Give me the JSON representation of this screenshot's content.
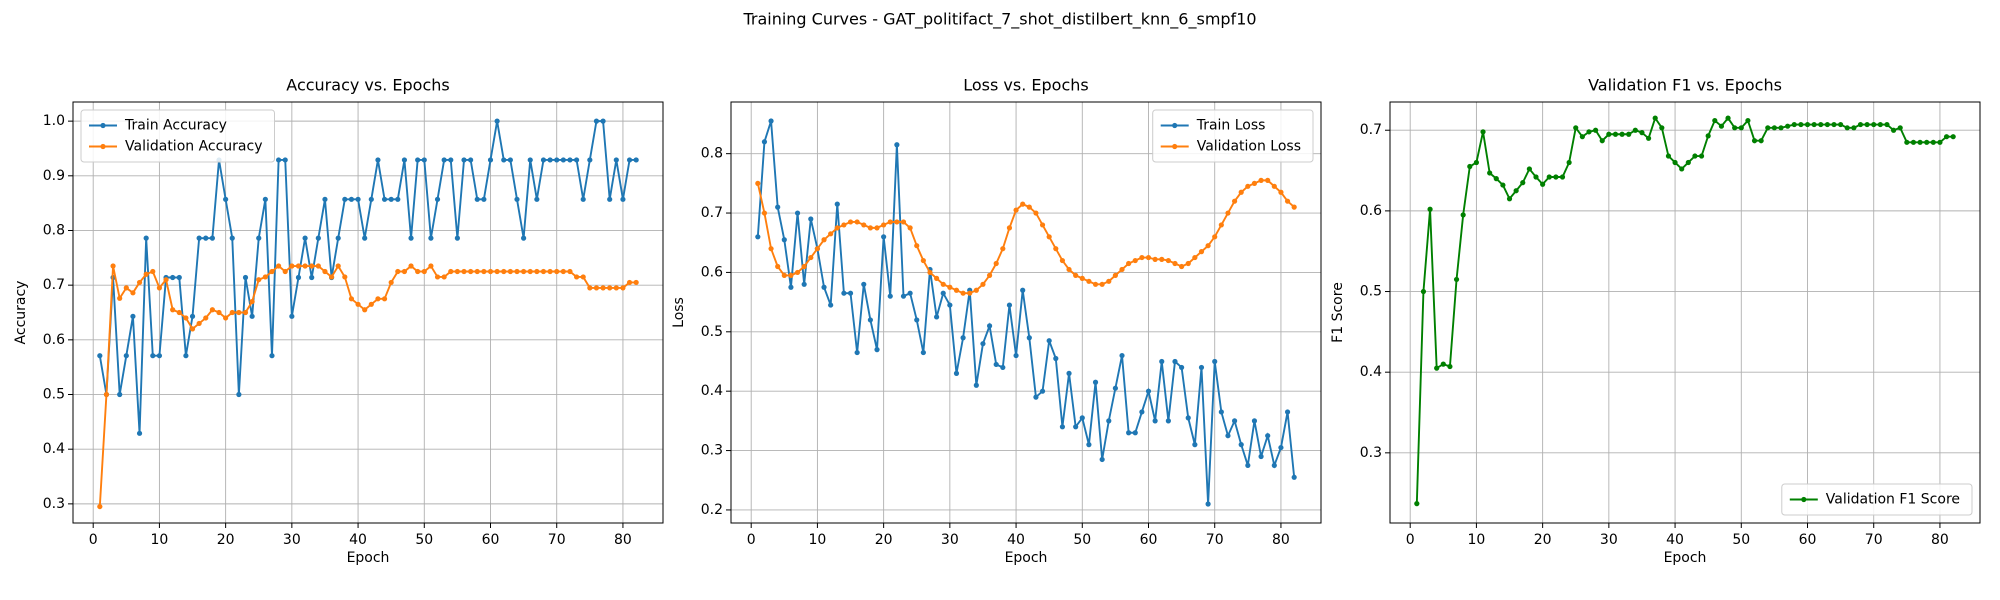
{
  "title": "Training Curves - GAT_politifact_7_shot_distilbert_knn_6_smpf10",
  "chart_data": [
    {
      "type": "line",
      "title": "Accuracy vs. Epochs",
      "xlabel": "Epoch",
      "ylabel": "Accuracy",
      "grid": true,
      "legend": "upper left",
      "x": [
        1,
        2,
        3,
        4,
        5,
        6,
        7,
        8,
        9,
        10,
        11,
        12,
        13,
        14,
        15,
        16,
        17,
        18,
        19,
        20,
        21,
        22,
        23,
        24,
        25,
        26,
        27,
        28,
        29,
        30,
        31,
        32,
        33,
        34,
        35,
        36,
        37,
        38,
        39,
        40,
        41,
        42,
        43,
        44,
        45,
        46,
        47,
        48,
        49,
        50,
        51,
        52,
        53,
        54,
        55,
        56,
        57,
        58,
        59,
        60,
        61,
        62,
        63,
        64,
        65,
        66,
        67,
        68,
        69,
        70,
        71,
        72,
        73,
        74,
        75,
        76,
        77,
        78,
        79,
        80,
        81,
        82
      ],
      "xlim": [
        -3.05,
        86.05
      ],
      "xticks": [
        0,
        10,
        20,
        30,
        40,
        50,
        60,
        70,
        80
      ],
      "ylim": [
        0.265,
        1.035
      ],
      "yticks": [
        0.3,
        0.4,
        0.5,
        0.6,
        0.7,
        0.8,
        0.9,
        {
          "value": 1,
          "label": "1.0"
        }
      ],
      "series": [
        {
          "name": "Train Accuracy",
          "color": "#1f77b4",
          "values": [
            0.571,
            0.5,
            0.714,
            0.5,
            0.571,
            0.643,
            0.429,
            0.786,
            0.571,
            0.571,
            0.714,
            0.714,
            0.714,
            0.571,
            0.643,
            0.786,
            0.786,
            0.786,
            0.929,
            0.857,
            0.786,
            0.5,
            0.714,
            0.643,
            0.786,
            0.857,
            0.571,
            0.929,
            0.929,
            0.643,
            0.714,
            0.786,
            0.714,
            0.786,
            0.857,
            0.714,
            0.786,
            0.857,
            0.857,
            0.857,
            0.786,
            0.857,
            0.929,
            0.857,
            0.857,
            0.857,
            0.929,
            0.786,
            0.929,
            0.929,
            0.786,
            0.857,
            0.929,
            0.929,
            0.786,
            0.929,
            0.929,
            0.857,
            0.857,
            0.929,
            1.0,
            0.929,
            0.929,
            0.857,
            0.786,
            0.929,
            0.857,
            0.929,
            0.929,
            0.929,
            0.929,
            0.929,
            0.929,
            0.857,
            0.929,
            1.0,
            1.0,
            0.857,
            0.929,
            0.857,
            0.929,
            0.929
          ]
        },
        {
          "name": "Validation Accuracy",
          "color": "#ff7f0e",
          "values": [
            0.295,
            0.5,
            0.735,
            0.676,
            0.695,
            0.686,
            0.705,
            0.72,
            0.725,
            0.695,
            0.71,
            0.655,
            0.65,
            0.64,
            0.62,
            0.63,
            0.64,
            0.655,
            0.65,
            0.64,
            0.65,
            0.65,
            0.65,
            0.67,
            0.71,
            0.715,
            0.725,
            0.735,
            0.725,
            0.735,
            0.735,
            0.735,
            0.735,
            0.735,
            0.725,
            0.715,
            0.735,
            0.715,
            0.675,
            0.665,
            0.655,
            0.665,
            0.675,
            0.675,
            0.705,
            0.725,
            0.725,
            0.735,
            0.725,
            0.725,
            0.735,
            0.715,
            0.715,
            0.725,
            0.725,
            0.725,
            0.725,
            0.725,
            0.725,
            0.725,
            0.725,
            0.725,
            0.725,
            0.725,
            0.725,
            0.725,
            0.725,
            0.725,
            0.725,
            0.725,
            0.725,
            0.725,
            0.715,
            0.715,
            0.695,
            0.695,
            0.695,
            0.695,
            0.695,
            0.695,
            0.705,
            0.705
          ]
        }
      ]
    },
    {
      "type": "line",
      "title": "Loss vs. Epochs",
      "xlabel": "Epoch",
      "ylabel": "Loss",
      "grid": true,
      "legend": "upper right",
      "x": [
        1,
        2,
        3,
        4,
        5,
        6,
        7,
        8,
        9,
        10,
        11,
        12,
        13,
        14,
        15,
        16,
        17,
        18,
        19,
        20,
        21,
        22,
        23,
        24,
        25,
        26,
        27,
        28,
        29,
        30,
        31,
        32,
        33,
        34,
        35,
        36,
        37,
        38,
        39,
        40,
        41,
        42,
        43,
        44,
        45,
        46,
        47,
        48,
        49,
        50,
        51,
        52,
        53,
        54,
        55,
        56,
        57,
        58,
        59,
        60,
        61,
        62,
        63,
        64,
        65,
        66,
        67,
        68,
        69,
        70,
        71,
        72,
        73,
        74,
        75,
        76,
        77,
        78,
        79,
        80,
        81,
        82
      ],
      "xlim": [
        -3.05,
        86.05
      ],
      "xticks": [
        0,
        10,
        20,
        30,
        40,
        50,
        60,
        70,
        80
      ],
      "ylim": [
        0.178,
        0.887
      ],
      "yticks": [
        0.2,
        0.3,
        0.4,
        0.5,
        0.6,
        0.7,
        0.8
      ],
      "series": [
        {
          "name": "Train Loss",
          "color": "#1f77b4",
          "values": [
            0.66,
            0.82,
            0.855,
            0.71,
            0.655,
            0.575,
            0.7,
            0.58,
            0.69,
            0.64,
            0.575,
            0.545,
            0.715,
            0.565,
            0.565,
            0.465,
            0.58,
            0.52,
            0.47,
            0.66,
            0.56,
            0.815,
            0.56,
            0.565,
            0.52,
            0.465,
            0.605,
            0.525,
            0.565,
            0.545,
            0.43,
            0.49,
            0.57,
            0.41,
            0.48,
            0.51,
            0.445,
            0.44,
            0.545,
            0.46,
            0.57,
            0.49,
            0.39,
            0.4,
            0.485,
            0.455,
            0.34,
            0.43,
            0.34,
            0.355,
            0.31,
            0.415,
            0.285,
            0.35,
            0.405,
            0.46,
            0.33,
            0.33,
            0.365,
            0.4,
            0.35,
            0.45,
            0.35,
            0.45,
            0.44,
            0.355,
            0.31,
            0.44,
            0.21,
            0.45,
            0.365,
            0.325,
            0.35,
            0.31,
            0.275,
            0.35,
            0.29,
            0.325,
            0.275,
            0.305,
            0.365,
            0.255
          ]
        },
        {
          "name": "Validation Loss",
          "color": "#ff7f0e",
          "values": [
            0.75,
            0.7,
            0.64,
            0.61,
            0.595,
            0.595,
            0.6,
            0.61,
            0.625,
            0.64,
            0.655,
            0.665,
            0.675,
            0.68,
            0.685,
            0.685,
            0.68,
            0.675,
            0.675,
            0.68,
            0.685,
            0.685,
            0.685,
            0.675,
            0.645,
            0.62,
            0.6,
            0.59,
            0.58,
            0.575,
            0.57,
            0.565,
            0.565,
            0.57,
            0.58,
            0.595,
            0.615,
            0.64,
            0.675,
            0.705,
            0.715,
            0.71,
            0.7,
            0.68,
            0.66,
            0.64,
            0.62,
            0.605,
            0.595,
            0.59,
            0.585,
            0.58,
            0.58,
            0.585,
            0.595,
            0.605,
            0.615,
            0.62,
            0.625,
            0.625,
            0.622,
            0.622,
            0.62,
            0.615,
            0.61,
            0.615,
            0.625,
            0.635,
            0.645,
            0.66,
            0.68,
            0.7,
            0.72,
            0.735,
            0.745,
            0.75,
            0.755,
            0.755,
            0.745,
            0.735,
            0.72,
            0.71
          ]
        }
      ]
    },
    {
      "type": "line",
      "title": "Validation F1 vs. Epochs",
      "xlabel": "Epoch",
      "ylabel": "F1 Score",
      "grid": true,
      "legend": "lower right",
      "x": [
        1,
        2,
        3,
        4,
        5,
        6,
        7,
        8,
        9,
        10,
        11,
        12,
        13,
        14,
        15,
        16,
        17,
        18,
        19,
        20,
        21,
        22,
        23,
        24,
        25,
        26,
        27,
        28,
        29,
        30,
        31,
        32,
        33,
        34,
        35,
        36,
        37,
        38,
        39,
        40,
        41,
        42,
        43,
        44,
        45,
        46,
        47,
        48,
        49,
        50,
        51,
        52,
        53,
        54,
        55,
        56,
        57,
        58,
        59,
        60,
        61,
        62,
        63,
        64,
        65,
        66,
        67,
        68,
        69,
        70,
        71,
        72,
        73,
        74,
        75,
        76,
        77,
        78,
        79,
        80,
        81,
        82
      ],
      "xlim": [
        -3.05,
        86.05
      ],
      "xticks": [
        0,
        10,
        20,
        30,
        40,
        50,
        60,
        70,
        80
      ],
      "ylim": [
        0.213,
        0.735
      ],
      "yticks": [
        0.3,
        0.4,
        0.5,
        0.6,
        0.7
      ],
      "series": [
        {
          "name": "Validation F1 Score",
          "color": "#008000",
          "values": [
            0.237,
            0.5,
            0.602,
            0.405,
            0.41,
            0.407,
            0.515,
            0.595,
            0.655,
            0.66,
            0.698,
            0.647,
            0.64,
            0.632,
            0.615,
            0.625,
            0.635,
            0.652,
            0.642,
            0.633,
            0.642,
            0.642,
            0.642,
            0.66,
            0.703,
            0.692,
            0.698,
            0.7,
            0.687,
            0.695,
            0.695,
            0.695,
            0.695,
            0.7,
            0.697,
            0.69,
            0.715,
            0.703,
            0.668,
            0.66,
            0.652,
            0.66,
            0.668,
            0.668,
            0.693,
            0.712,
            0.705,
            0.715,
            0.703,
            0.703,
            0.712,
            0.687,
            0.687,
            0.703,
            0.703,
            0.703,
            0.705,
            0.707,
            0.707,
            0.707,
            0.707,
            0.707,
            0.707,
            0.707,
            0.707,
            0.703,
            0.703,
            0.707,
            0.707,
            0.707,
            0.707,
            0.707,
            0.7,
            0.703,
            0.685,
            0.685,
            0.685,
            0.685,
            0.685,
            0.685,
            0.692,
            0.692
          ]
        }
      ]
    }
  ]
}
